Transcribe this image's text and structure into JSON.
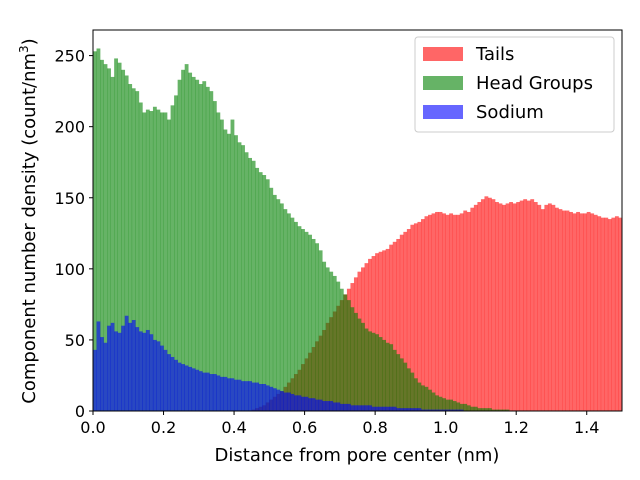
{
  "chart_data": {
    "type": "bar",
    "subtype": "overlapping-histogram",
    "xlabel": "Distance from pore center (nm)",
    "ylabel_main": "Component number density (count/nm",
    "ylabel_sup": "3",
    "ylabel_close": ")",
    "xlim": [
      0.0,
      1.5
    ],
    "ylim": [
      0,
      268
    ],
    "xticks": [
      0.0,
      0.2,
      0.4,
      0.6,
      0.8,
      1.0,
      1.2,
      1.4
    ],
    "xtick_labels": [
      "0.0",
      "0.2",
      "0.4",
      "0.6",
      "0.8",
      "1.0",
      "1.2",
      "1.4"
    ],
    "yticks": [
      0,
      50,
      100,
      150,
      200,
      250
    ],
    "ytick_labels": [
      "0",
      "50",
      "100",
      "150",
      "200",
      "250"
    ],
    "legend_position": "top-right",
    "bin_width": 0.01,
    "bin_start": 0.0,
    "series": [
      {
        "name": "Tails",
        "color": "#ff0000",
        "alpha": 0.6,
        "values": [
          0,
          0,
          0,
          0,
          0,
          0,
          0,
          0,
          0,
          0,
          0,
          0,
          0,
          0,
          0,
          0,
          0,
          0,
          0,
          0,
          0,
          0,
          0,
          0,
          0,
          0,
          0,
          0,
          0,
          0,
          0,
          0,
          0,
          0,
          0,
          0,
          0,
          0,
          0,
          0,
          0,
          0,
          0,
          0,
          0,
          1,
          2,
          3,
          4,
          6,
          8,
          10,
          12,
          14,
          17,
          20,
          23,
          26,
          29,
          33,
          37,
          41,
          45,
          49,
          53,
          57,
          62,
          66,
          70,
          74,
          78,
          82,
          86,
          90,
          94,
          98,
          101,
          104,
          107,
          109,
          111,
          112,
          113,
          114,
          117,
          119,
          121,
          124,
          126,
          128,
          131,
          132,
          133,
          135,
          137,
          138,
          139,
          140,
          140,
          139,
          138,
          139,
          138,
          138,
          139,
          141,
          140,
          143,
          145,
          147,
          149,
          151,
          150,
          149,
          147,
          146,
          145,
          146,
          147,
          146,
          147,
          148,
          149,
          148,
          149,
          147,
          145,
          142,
          145,
          146,
          145,
          143,
          142,
          141,
          141,
          140,
          139,
          140,
          139,
          139,
          140,
          139,
          138,
          137,
          136,
          136,
          135,
          136,
          137,
          136
        ]
      },
      {
        "name": "Head Groups",
        "color": "#008000",
        "alpha": 0.6,
        "values": [
          253,
          255,
          247,
          244,
          241,
          235,
          248,
          245,
          240,
          236,
          230,
          227,
          225,
          217,
          210,
          212,
          211,
          214,
          212,
          210,
          210,
          205,
          215,
          222,
          233,
          240,
          244,
          238,
          235,
          233,
          230,
          232,
          228,
          225,
          218,
          210,
          205,
          198,
          195,
          205,
          194,
          189,
          187,
          182,
          178,
          176,
          171,
          168,
          166,
          163,
          157,
          152,
          149,
          146,
          142,
          139,
          136,
          133,
          130,
          128,
          126,
          124,
          121,
          118,
          113,
          105,
          101,
          98,
          95,
          91,
          86,
          82,
          78,
          73,
          69,
          65,
          62,
          58,
          56,
          55,
          54,
          52,
          50,
          48,
          47,
          43,
          40,
          37,
          34,
          30,
          27,
          23,
          20,
          18,
          17,
          15,
          13,
          11,
          10,
          9,
          8,
          8,
          7,
          6,
          5,
          5,
          4,
          3,
          3,
          2,
          2,
          2,
          2,
          1,
          1,
          1,
          1,
          1,
          0,
          0,
          0,
          0,
          0,
          0,
          0,
          0,
          0,
          0,
          0,
          0,
          0,
          0,
          0,
          0,
          0,
          0,
          0,
          0,
          0,
          0,
          0,
          0,
          0,
          0,
          0,
          0,
          0,
          0,
          0,
          0
        ]
      },
      {
        "name": "Sodium",
        "color": "#0000ff",
        "alpha": 0.6,
        "values": [
          43,
          63,
          52,
          48,
          60,
          62,
          56,
          55,
          60,
          67,
          62,
          64,
          59,
          56,
          55,
          57,
          54,
          50,
          49,
          46,
          43,
          40,
          38,
          36,
          34,
          33,
          32,
          31,
          30,
          29,
          28,
          27,
          27,
          26,
          26,
          25,
          24,
          24,
          23,
          23,
          22,
          22,
          21,
          21,
          21,
          20,
          20,
          19,
          19,
          18,
          17,
          16,
          15,
          14,
          13,
          13,
          12,
          11,
          11,
          10,
          10,
          9,
          9,
          8,
          8,
          7,
          7,
          7,
          6,
          6,
          5,
          5,
          5,
          4,
          4,
          4,
          4,
          4,
          4,
          3,
          3,
          3,
          3,
          3,
          3,
          3,
          2,
          2,
          2,
          2,
          2,
          2,
          2,
          1,
          1,
          1,
          1,
          1,
          1,
          1,
          1,
          1,
          1,
          1,
          1,
          0,
          0,
          0,
          0,
          0,
          0,
          0,
          0,
          0,
          0,
          0,
          0,
          0,
          0,
          0,
          0,
          0,
          0,
          0,
          0,
          0,
          0,
          0,
          0,
          0,
          0,
          0,
          0,
          0,
          0,
          0,
          0,
          0,
          0,
          0,
          0,
          0,
          0,
          0,
          0,
          0,
          0,
          0,
          0,
          0
        ]
      }
    ]
  }
}
